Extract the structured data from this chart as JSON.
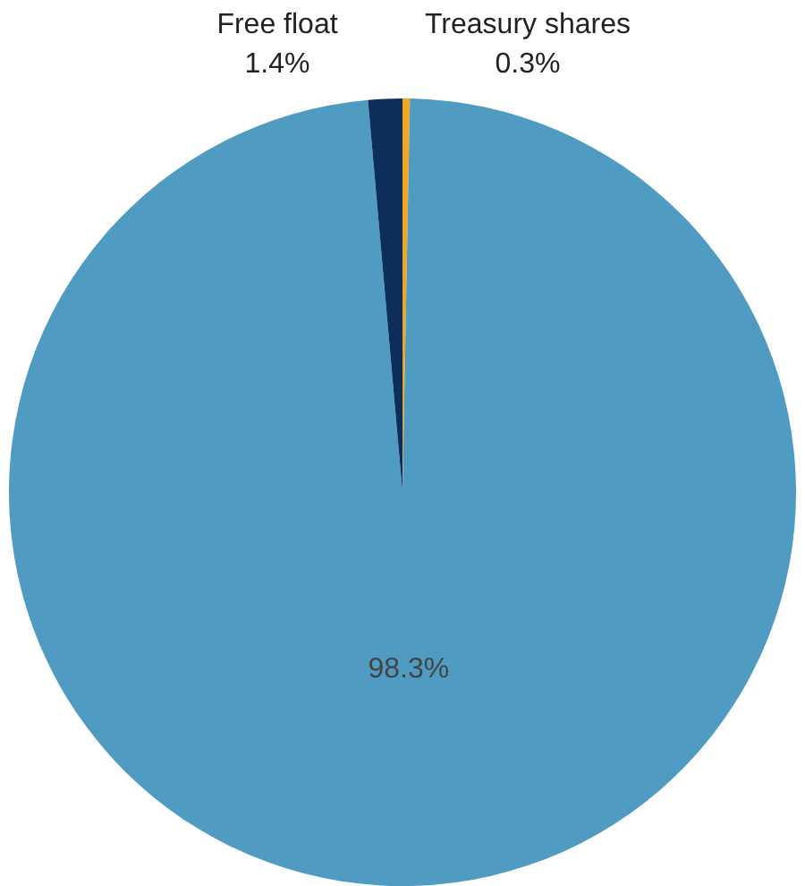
{
  "chart_data": {
    "type": "pie",
    "categories": [
      "Treasury shares",
      null,
      "Free float"
    ],
    "values": [
      0.3,
      98.3,
      1.4
    ],
    "colors": [
      "#f0a623",
      "#4f9bc2",
      "#0d2e5a"
    ],
    "value_labels": [
      "0.3%",
      "98.3%",
      "1.4%"
    ],
    "legend": false
  }
}
